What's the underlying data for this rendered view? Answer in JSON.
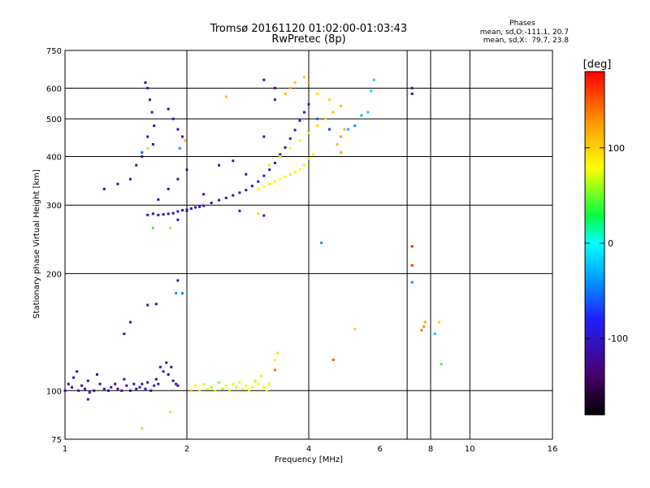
{
  "chart_data": {
    "type": "scatter",
    "title": "Tromsø 20161120 01:02:00-01:03:43",
    "subtitle": "RwPretec (8p)",
    "xlabel": "Frequency [MHz]",
    "ylabel": "Stationary phase Virtual Height [km]",
    "x_scale": "log",
    "y_scale": "log",
    "xlim": [
      1,
      16
    ],
    "ylim": [
      75,
      750
    ],
    "x_ticks": [
      "1",
      "2",
      "4",
      "6",
      "8",
      "10",
      "16"
    ],
    "x_tick_values": [
      1,
      2,
      4,
      6,
      8,
      10,
      16
    ],
    "x_grid_values": [
      1,
      2,
      4,
      7,
      8,
      10,
      16
    ],
    "y_ticks": [
      "75",
      "100",
      "200",
      "300",
      "400",
      "500",
      "600",
      "750"
    ],
    "y_tick_values": [
      75,
      100,
      200,
      300,
      400,
      500,
      600,
      750
    ],
    "grid": true,
    "phases_box": {
      "heading": "Phases",
      "line1": "mean, sd,O:-111.1, 20.7",
      "line2": "mean, sd,X:  79.7, 23.8"
    },
    "colorbar": {
      "label": "[deg]",
      "range": [
        -180,
        180
      ],
      "ticks": [
        "100",
        "0",
        "-100"
      ],
      "tick_values": [
        100,
        0,
        -100
      ],
      "stops": [
        "#000000",
        "#4a0070",
        "#2020ff",
        "#00a0ff",
        "#00ffff",
        "#00ff40",
        "#ffff00",
        "#ff9000",
        "#ff0000"
      ]
    },
    "series": [
      {
        "points": [
          [
            1.0,
            100,
            -120
          ],
          [
            1.02,
            104,
            -110
          ],
          [
            1.04,
            102,
            -120
          ],
          [
            1.05,
            108,
            -100
          ],
          [
            1.07,
            112,
            -115
          ],
          [
            1.08,
            100,
            -120
          ],
          [
            1.1,
            103,
            -125
          ],
          [
            1.12,
            101,
            -110
          ],
          [
            1.14,
            106,
            -120
          ],
          [
            1.15,
            99,
            -115
          ],
          [
            1.18,
            100,
            -120
          ],
          [
            1.2,
            110,
            -105
          ],
          [
            1.22,
            104,
            -115
          ],
          [
            1.25,
            101,
            -120
          ],
          [
            1.28,
            100,
            -125
          ],
          [
            1.3,
            102,
            -110
          ],
          [
            1.33,
            104,
            -120
          ],
          [
            1.35,
            101,
            -115
          ],
          [
            1.38,
            100,
            -120
          ],
          [
            1.4,
            107,
            -110
          ],
          [
            1.42,
            103,
            -120
          ],
          [
            1.45,
            100,
            -115
          ],
          [
            1.48,
            104,
            -105
          ],
          [
            1.5,
            101,
            -120
          ],
          [
            1.53,
            102,
            -110
          ],
          [
            1.55,
            104,
            -120
          ],
          [
            1.58,
            101,
            -115
          ],
          [
            1.6,
            105,
            -120
          ],
          [
            1.63,
            100,
            -118
          ],
          [
            1.66,
            103,
            -110
          ],
          [
            1.68,
            107,
            -120
          ],
          [
            1.7,
            104,
            -115
          ],
          [
            1.72,
            115,
            -100
          ],
          [
            1.75,
            112,
            -108
          ],
          [
            1.78,
            118,
            -105
          ],
          [
            1.8,
            110,
            -112
          ],
          [
            1.83,
            115,
            -110
          ],
          [
            1.85,
            106,
            -120
          ],
          [
            1.88,
            104,
            -115
          ],
          [
            1.9,
            103,
            -120
          ],
          [
            1.6,
            166,
            -110
          ],
          [
            1.68,
            167,
            -115
          ],
          [
            1.88,
            178,
            -40
          ],
          [
            1.95,
            178,
            -45
          ],
          [
            1.9,
            192,
            -110
          ],
          [
            1.14,
            95,
            -100
          ],
          [
            1.55,
            80,
            60
          ],
          [
            1.82,
            88,
            70
          ],
          [
            2.05,
            100,
            105
          ],
          [
            2.1,
            103,
            80
          ],
          [
            2.15,
            100,
            85
          ],
          [
            2.2,
            104,
            70
          ],
          [
            2.25,
            101,
            75
          ],
          [
            2.3,
            102,
            60
          ],
          [
            2.35,
            100,
            70
          ],
          [
            2.4,
            105,
            55
          ],
          [
            2.45,
            101,
            60
          ],
          [
            2.5,
            103,
            80
          ],
          [
            2.55,
            100,
            70
          ],
          [
            2.6,
            104,
            75
          ],
          [
            2.65,
            102,
            65
          ],
          [
            2.7,
            105,
            70
          ],
          [
            2.75,
            101,
            80
          ],
          [
            2.8,
            103,
            85
          ],
          [
            2.85,
            100,
            75
          ],
          [
            2.9,
            102,
            70
          ],
          [
            2.95,
            106,
            65
          ],
          [
            3.0,
            104,
            80
          ],
          [
            3.05,
            109,
            90
          ],
          [
            3.1,
            102,
            70
          ],
          [
            3.15,
            100,
            75
          ],
          [
            3.2,
            104,
            85
          ],
          [
            3.3,
            120,
            90
          ],
          [
            3.35,
            125,
            95
          ],
          [
            3.3,
            113,
            140
          ],
          [
            4.6,
            120,
            150
          ],
          [
            5.2,
            144,
            100
          ],
          [
            7.6,
            143,
            140
          ],
          [
            7.7,
            146,
            130
          ],
          [
            7.75,
            150,
            120
          ],
          [
            8.2,
            140,
            -20
          ],
          [
            8.4,
            150,
            100
          ],
          [
            8.5,
            117,
            40
          ],
          [
            1.6,
            283,
            -115
          ],
          [
            1.65,
            285,
            -110
          ],
          [
            1.7,
            283,
            -120
          ],
          [
            1.75,
            284,
            -112
          ],
          [
            1.8,
            285,
            -118
          ],
          [
            1.85,
            286,
            -115
          ],
          [
            1.9,
            289,
            -110
          ],
          [
            1.95,
            291,
            -120
          ],
          [
            2.0,
            292,
            -115
          ],
          [
            2.05,
            294,
            -112
          ],
          [
            2.1,
            296,
            -118
          ],
          [
            2.15,
            297,
            -110
          ],
          [
            2.2,
            299,
            -120
          ],
          [
            2.3,
            304,
            -112
          ],
          [
            2.4,
            309,
            -115
          ],
          [
            2.5,
            313,
            -118
          ],
          [
            2.6,
            318,
            -112
          ],
          [
            2.7,
            323,
            -115
          ],
          [
            2.8,
            328,
            -110
          ],
          [
            2.9,
            336,
            -112
          ],
          [
            3.0,
            345,
            -108
          ],
          [
            3.1,
            357,
            -110
          ],
          [
            3.2,
            370,
            -105
          ],
          [
            3.3,
            385,
            -110
          ],
          [
            3.4,
            405,
            -100
          ],
          [
            3.5,
            422,
            -105
          ],
          [
            3.6,
            445,
            -100
          ],
          [
            3.7,
            468,
            -105
          ],
          [
            3.8,
            495,
            -100
          ],
          [
            3.9,
            520,
            -95
          ],
          [
            4.0,
            545,
            -90
          ],
          [
            4.2,
            500,
            -60
          ],
          [
            4.5,
            470,
            -70
          ],
          [
            4.8,
            450,
            -40
          ],
          [
            5.0,
            470,
            -30
          ],
          [
            5.2,
            480,
            -40
          ],
          [
            5.4,
            510,
            -30
          ],
          [
            5.6,
            520,
            -20
          ],
          [
            5.7,
            590,
            -10
          ],
          [
            5.8,
            630,
            -15
          ],
          [
            1.9,
            275,
            -110
          ],
          [
            2.0,
            290,
            -112
          ],
          [
            2.2,
            320,
            -115
          ],
          [
            2.4,
            380,
            -110
          ],
          [
            2.6,
            390,
            -105
          ],
          [
            2.8,
            360,
            -110
          ],
          [
            3.1,
            450,
            -108
          ],
          [
            3.3,
            560,
            -110
          ],
          [
            3.3,
            600,
            -115
          ],
          [
            3.1,
            630,
            -120
          ],
          [
            1.58,
            620,
            -110
          ],
          [
            1.6,
            600,
            -112
          ],
          [
            1.62,
            560,
            -115
          ],
          [
            1.64,
            520,
            -110
          ],
          [
            1.66,
            480,
            -112
          ],
          [
            1.6,
            450,
            -115
          ],
          [
            1.65,
            430,
            -110
          ],
          [
            1.55,
            400,
            -112
          ],
          [
            1.5,
            380,
            -115
          ],
          [
            1.45,
            350,
            -110
          ],
          [
            1.35,
            340,
            -112
          ],
          [
            1.25,
            330,
            -115
          ],
          [
            1.55,
            410,
            -60
          ],
          [
            1.6,
            420,
            60
          ],
          [
            1.8,
            530,
            -110
          ],
          [
            1.85,
            500,
            -112
          ],
          [
            1.9,
            470,
            -115
          ],
          [
            1.95,
            450,
            -110
          ],
          [
            1.98,
            440,
            110
          ],
          [
            1.92,
            420,
            -40
          ],
          [
            1.7,
            310,
            -112
          ],
          [
            1.8,
            330,
            -115
          ],
          [
            1.9,
            350,
            -110
          ],
          [
            2.0,
            370,
            -112
          ],
          [
            1.82,
            262,
            60
          ],
          [
            1.65,
            262,
            40
          ],
          [
            2.7,
            290,
            -100
          ],
          [
            3.1,
            282,
            -110
          ],
          [
            1.4,
            140,
            -112
          ],
          [
            1.45,
            150,
            -115
          ],
          [
            3.0,
            330,
            85
          ],
          [
            3.1,
            335,
            80
          ],
          [
            3.2,
            340,
            90
          ],
          [
            3.3,
            345,
            85
          ],
          [
            3.4,
            350,
            80
          ],
          [
            3.5,
            355,
            85
          ],
          [
            3.6,
            360,
            90
          ],
          [
            3.7,
            365,
            85
          ],
          [
            3.8,
            370,
            80
          ],
          [
            3.9,
            380,
            85
          ],
          [
            4.0,
            395,
            90
          ],
          [
            4.1,
            405,
            85
          ],
          [
            3.2,
            380,
            70
          ],
          [
            3.4,
            400,
            75
          ],
          [
            3.6,
            420,
            80
          ],
          [
            3.8,
            440,
            85
          ],
          [
            4.0,
            460,
            90
          ],
          [
            4.2,
            480,
            95
          ],
          [
            4.4,
            500,
            100
          ],
          [
            4.6,
            520,
            105
          ],
          [
            4.8,
            540,
            110
          ],
          [
            4.5,
            560,
            100
          ],
          [
            4.2,
            580,
            95
          ],
          [
            4.0,
            620,
            120
          ],
          [
            3.5,
            580,
            110
          ],
          [
            3.6,
            600,
            115
          ],
          [
            3.7,
            620,
            105
          ],
          [
            3.9,
            640,
            100
          ],
          [
            4.8,
            450,
            120
          ],
          [
            4.9,
            470,
            115
          ],
          [
            4.7,
            430,
            110
          ],
          [
            4.8,
            410,
            125
          ],
          [
            3.0,
            285,
            100
          ],
          [
            2.5,
            570,
            110
          ],
          [
            4.3,
            240,
            -40
          ],
          [
            7.2,
            600,
            -110
          ],
          [
            7.2,
            580,
            -120
          ],
          [
            7.2,
            235,
            170
          ],
          [
            7.2,
            210,
            165
          ],
          [
            7.2,
            190,
            -40
          ]
        ]
      }
    ]
  }
}
